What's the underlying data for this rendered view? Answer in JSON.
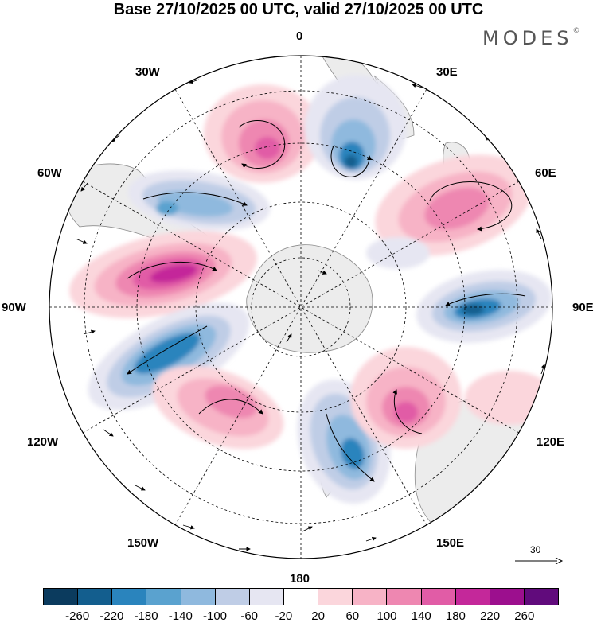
{
  "title": "Base 27/10/2025 00 UTC, valid 27/10/2025 00 UTC",
  "brand": {
    "name": "MODES",
    "mark": "©"
  },
  "longitude_labels": {
    "deg0": "0",
    "deg30e": "30E",
    "deg60e": "60E",
    "deg90e": "90E",
    "deg120e": "120E",
    "deg150e": "150E",
    "deg180": "180",
    "deg150w": "150W",
    "deg120w": "120W",
    "deg90w": "90W",
    "deg60w": "60W",
    "deg30w": "30W"
  },
  "reference_vector": {
    "value": "30"
  },
  "colorbar": {
    "colors": [
      "#0b3b5e",
      "#135e8e",
      "#2a84bd",
      "#5aa2cf",
      "#8fb9de",
      "#bfcde6",
      "#e6e6f2",
      "#ffffff",
      "#fbd6dc",
      "#f7b3c6",
      "#ee87b1",
      "#e15ca6",
      "#c4289a",
      "#9c0f8e",
      "#610b7c"
    ],
    "ticks": [
      "-260",
      "-220",
      "-180",
      "-140",
      "-100",
      "-60",
      "-20",
      "20",
      "60",
      "100",
      "140",
      "180",
      "220",
      "260"
    ]
  },
  "colors": {
    "land": "#ececec",
    "grid": "#000000"
  }
}
